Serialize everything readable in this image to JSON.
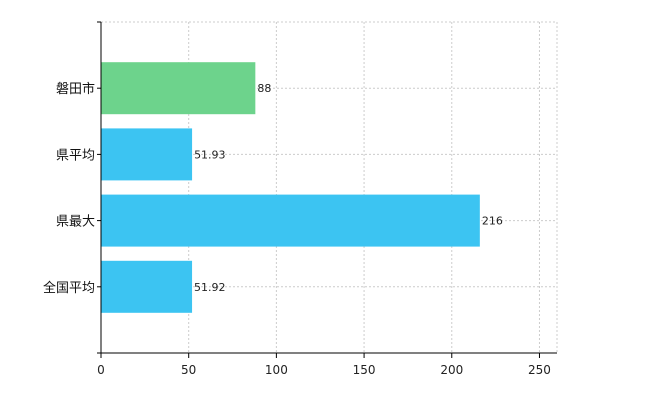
{
  "chart_data": {
    "type": "bar",
    "orientation": "horizontal",
    "categories": [
      "磐田市",
      "県平均",
      "県最大",
      "全国平均"
    ],
    "values": [
      88,
      51.93,
      216,
      51.92
    ],
    "data_labels": [
      "88",
      "51.93",
      "216",
      "51.92"
    ],
    "colors": [
      "#6dd38c",
      "#3cc4f2",
      "#3cc4f2",
      "#3cc4f2"
    ],
    "xlim": [
      0,
      260
    ],
    "xticks": [
      0,
      50,
      100,
      150,
      200,
      250
    ],
    "xtick_labels": [
      "0",
      "50",
      "100",
      "150",
      "200",
      "250"
    ],
    "grid": true,
    "legend": "none"
  }
}
